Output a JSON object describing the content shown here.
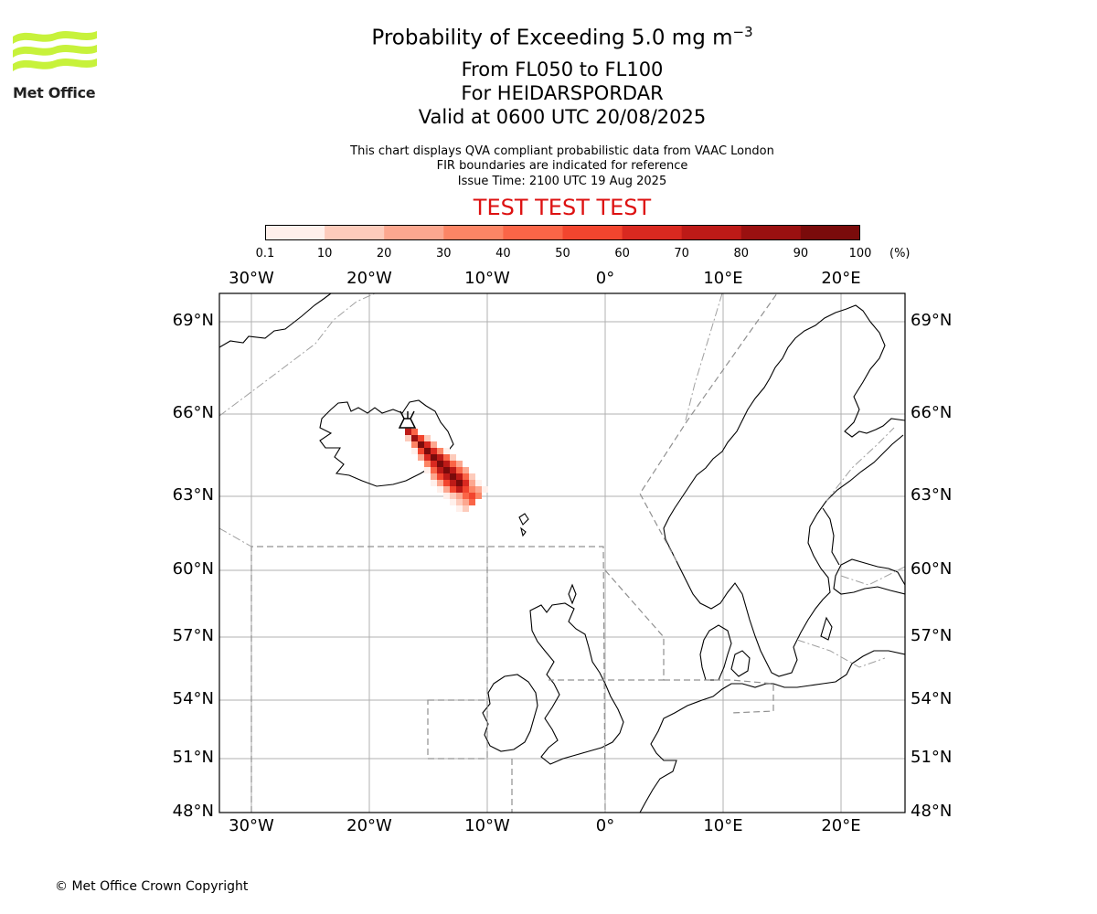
{
  "logo": {
    "text": "Met Office",
    "color": "#c7f23b"
  },
  "title": {
    "main": "Probability of Exceeding 5.0 mg m",
    "main_sup": "−3",
    "levels": "From FL050 to FL100",
    "location": "For HEIDARSPORDAR",
    "valid": "Valid at 0600 UTC 20/08/2025"
  },
  "notes": {
    "line1": "This chart displays QVA compliant probabilistic data from VAAC London",
    "line2": "FIR boundaries are indicated for reference",
    "issue": "Issue Time: 2100 UTC 19 Aug 2025"
  },
  "test_banner": {
    "text": "TEST TEST TEST",
    "color": "#dd1111"
  },
  "colorbar": {
    "ticks": [
      "0.1",
      "10",
      "20",
      "30",
      "40",
      "50",
      "60",
      "70",
      "80",
      "90",
      "100"
    ],
    "unit": "(%)",
    "colors": [
      "#fff0eb",
      "#fdcbbb",
      "#fca78f",
      "#fc8565",
      "#fa6547",
      "#f2452e",
      "#d92920",
      "#bd1a17",
      "#9a1010",
      "#7a0b0b"
    ]
  },
  "map": {
    "lon_labels": [
      "30°W",
      "20°W",
      "10°W",
      "0°",
      "10°E",
      "20°E"
    ],
    "lat_labels": [
      "69°N",
      "66°N",
      "63°N",
      "60°N",
      "57°N",
      "54°N",
      "51°N",
      "48°N"
    ],
    "volcano_icon": "volcano-marker-icon"
  },
  "copyright": "© Met Office Crown Copyright"
}
